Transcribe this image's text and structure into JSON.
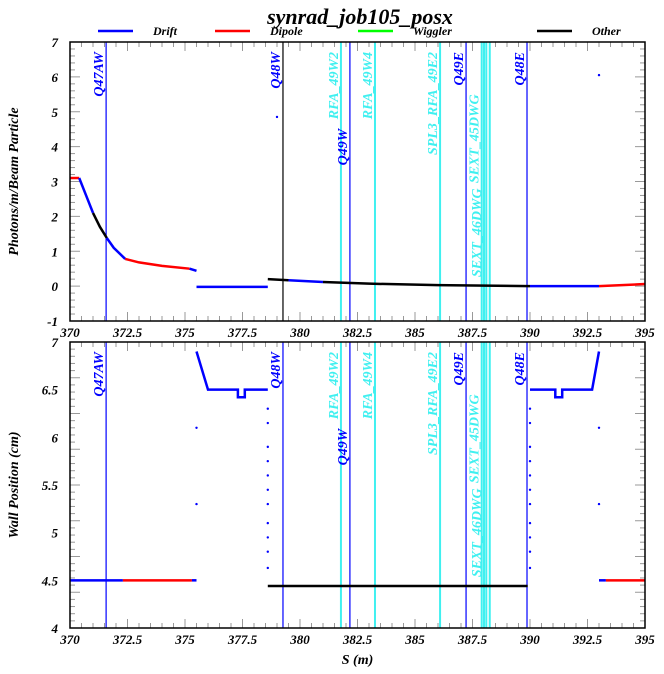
{
  "title": "synrad_job105_posx",
  "legend": [
    {
      "label": "Drift",
      "color": "#0000ff"
    },
    {
      "label": "Dipole",
      "color": "#ff0000"
    },
    {
      "label": "Wiggler",
      "color": "#00ff00"
    },
    {
      "label": "Other",
      "color": "#000000"
    }
  ],
  "chart_data": [
    {
      "type": "line",
      "name": "photons",
      "ylabel": "Photons/m/Beam Particle",
      "xlabel": "",
      "xlim": [
        370,
        395
      ],
      "ylim": [
        -1,
        7
      ],
      "xticks": [
        "370",
        "372.5",
        "375",
        "377.5",
        "380",
        "382.5",
        "385",
        "387.5",
        "390",
        "392.5",
        "395"
      ],
      "yticks": [
        "-1",
        "0",
        "1",
        "2",
        "3",
        "4",
        "5",
        "6",
        "7"
      ],
      "segments": [
        {
          "color": "#ff0000",
          "points": [
            [
              370,
              3.1
            ],
            [
              370.4,
              3.1
            ]
          ]
        },
        {
          "color": "#0000ff",
          "points": [
            [
              370.4,
              3.1
            ],
            [
              370.7,
              2.6
            ],
            [
              371.0,
              2.1
            ]
          ]
        },
        {
          "color": "#000000",
          "points": [
            [
              371.0,
              2.1
            ],
            [
              371.3,
              1.7
            ],
            [
              371.6,
              1.38
            ]
          ]
        },
        {
          "color": "#0000ff",
          "points": [
            [
              371.6,
              1.38
            ],
            [
              371.9,
              1.1
            ],
            [
              372.4,
              0.78
            ]
          ]
        },
        {
          "color": "#ff0000",
          "points": [
            [
              372.4,
              0.78
            ],
            [
              373.0,
              0.68
            ],
            [
              374.0,
              0.58
            ],
            [
              375.2,
              0.5
            ]
          ]
        },
        {
          "color": "#0000ff",
          "points": [
            [
              375.2,
              0.5
            ],
            [
              375.5,
              0.44
            ]
          ]
        },
        {
          "color": "#0000ff",
          "points": [
            [
              375.5,
              -0.02
            ],
            [
              378.6,
              -0.02
            ]
          ]
        },
        {
          "color": "#000000",
          "points": [
            [
              378.6,
              0.2
            ],
            [
              379.5,
              0.17
            ]
          ]
        },
        {
          "color": "#0000ff",
          "points": [
            [
              379.5,
              0.17
            ],
            [
              381,
              0.12
            ]
          ]
        },
        {
          "color": "#000000",
          "points": [
            [
              381,
              0.12
            ],
            [
              383,
              0.07
            ],
            [
              386,
              0.03
            ],
            [
              390,
              0.0
            ]
          ]
        },
        {
          "color": "#0000ff",
          "points": [
            [
              390,
              0.0
            ],
            [
              393,
              0.0
            ]
          ]
        },
        {
          "color": "#ff0000",
          "points": [
            [
              393,
              0.0
            ],
            [
              395,
              0.06
            ]
          ]
        }
      ],
      "dots": [
        [
          379.0,
          4.85
        ],
        [
          393.0,
          6.05
        ]
      ]
    },
    {
      "type": "line",
      "name": "wall",
      "ylabel": "Wall Position (cm)",
      "xlabel": "S (m)",
      "xlim": [
        370,
        395
      ],
      "ylim": [
        4,
        7
      ],
      "xticks": [
        "370",
        "372.5",
        "375",
        "377.5",
        "380",
        "382.5",
        "385",
        "387.5",
        "390",
        "392.5",
        "395"
      ],
      "yticks": [
        "4",
        "4.5",
        "5",
        "5.5",
        "6",
        "6.5",
        "7"
      ],
      "segments": [
        {
          "color": "#0000ff",
          "points": [
            [
              370,
              4.5
            ],
            [
              372.3,
              4.5
            ]
          ]
        },
        {
          "color": "#ff0000",
          "points": [
            [
              372.3,
              4.5
            ],
            [
              375.3,
              4.5
            ]
          ]
        },
        {
          "color": "#0000ff",
          "points": [
            [
              375.3,
              4.5
            ],
            [
              375.5,
              4.5
            ]
          ]
        },
        {
          "color": "#0000ff",
          "points": [
            [
              375.5,
              6.9
            ],
            [
              376.0,
              6.5
            ],
            [
              377.3,
              6.5
            ],
            [
              377.3,
              6.42
            ],
            [
              377.6,
              6.42
            ],
            [
              377.6,
              6.5
            ],
            [
              378.6,
              6.5
            ]
          ]
        },
        {
          "color": "#000000",
          "points": [
            [
              378.6,
              4.44
            ],
            [
              389.9,
              4.44
            ]
          ]
        },
        {
          "color": "#0000ff",
          "points": [
            [
              390.0,
              6.5
            ],
            [
              391.1,
              6.5
            ],
            [
              391.1,
              6.42
            ],
            [
              391.4,
              6.42
            ],
            [
              391.4,
              6.5
            ],
            [
              392.7,
              6.5
            ],
            [
              393.0,
              6.9
            ]
          ]
        },
        {
          "color": "#0000ff",
          "points": [
            [
              393.0,
              4.5
            ],
            [
              393.3,
              4.5
            ]
          ]
        },
        {
          "color": "#ff0000",
          "points": [
            [
              393.3,
              4.5
            ],
            [
              395,
              4.5
            ]
          ]
        }
      ],
      "dots": [
        [
          375.5,
          6.1
        ],
        [
          375.5,
          5.3
        ],
        [
          378.6,
          6.3
        ],
        [
          378.6,
          6.15
        ],
        [
          378.6,
          5.9
        ],
        [
          378.6,
          5.75
        ],
        [
          378.6,
          5.6
        ],
        [
          378.6,
          5.45
        ],
        [
          378.6,
          5.3
        ],
        [
          378.6,
          5.1
        ],
        [
          378.6,
          4.95
        ],
        [
          378.6,
          4.8
        ],
        [
          378.6,
          4.63
        ],
        [
          390.0,
          6.3
        ],
        [
          390.0,
          6.15
        ],
        [
          390.0,
          5.9
        ],
        [
          390.0,
          5.75
        ],
        [
          390.0,
          5.6
        ],
        [
          390.0,
          5.45
        ],
        [
          390.0,
          5.3
        ],
        [
          390.0,
          5.1
        ],
        [
          390.0,
          4.95
        ],
        [
          390.0,
          4.8
        ],
        [
          390.0,
          4.63
        ],
        [
          393.0,
          6.1
        ],
        [
          393.0,
          5.3
        ]
      ]
    }
  ],
  "elements": [
    {
      "label": "Q47AW",
      "s": 371.57,
      "color": "#0000ff"
    },
    {
      "label": "Q48W",
      "s": 379.26,
      "color": "#000000"
    },
    {
      "label": "RFA_49W2",
      "s": 381.78,
      "color": "#40f0f0"
    },
    {
      "label": "Q49W",
      "s": 382.17,
      "color": "#0000ff"
    },
    {
      "label": "RFA_49W4",
      "s": 383.26,
      "color": "#40f0f0"
    },
    {
      "label": "SPL3_RFA_49E2",
      "s": 386.09,
      "color": "#40f0f0"
    },
    {
      "label": "Q49E",
      "s": 387.22,
      "color": "#0000ff"
    },
    {
      "label": "SEXT_45DWG",
      "s": 387.9,
      "color": "#40f0f0"
    },
    {
      "label": "SEXT_46DWG",
      "s": 388.0,
      "color": "#40f0f0"
    },
    {
      "label": "",
      "s": 388.1,
      "color": "#40f0f0"
    },
    {
      "label": "",
      "s": 388.25,
      "color": "#40f0f0"
    },
    {
      "label": "Q48E",
      "s": 389.87,
      "color": "#0000ff"
    }
  ]
}
